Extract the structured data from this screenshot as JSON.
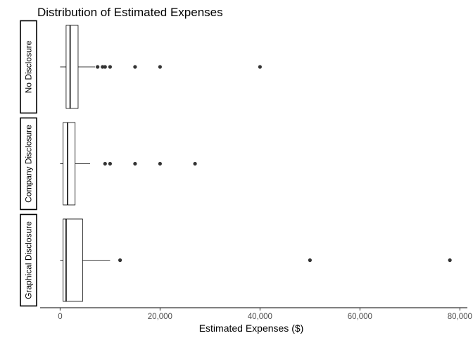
{
  "chart_data": {
    "type": "boxplot",
    "title": "Distribution of Estimated Expenses",
    "xlabel": "Estimated Expenses ($)",
    "xlim": [
      -4000,
      81500
    ],
    "x_ticks": [
      0,
      20000,
      40000,
      60000,
      80000
    ],
    "x_tick_labels": [
      "0",
      "20,000",
      "40,000",
      "60,000",
      "80,000"
    ],
    "grid": false,
    "legend": "none",
    "box_color": "#000000",
    "point_color": "#333333",
    "panels": [
      {
        "label": "No Disclosure",
        "min": 0,
        "q1": 1200,
        "median": 2000,
        "q3": 3600,
        "whisker_low": 0,
        "whisker_high": 7000,
        "outliers": [
          7500,
          8500,
          9000,
          10000,
          15000,
          20000,
          40000
        ]
      },
      {
        "label": "Company Disclosure",
        "min": 0,
        "q1": 600,
        "median": 1500,
        "q3": 3000,
        "whisker_low": 0,
        "whisker_high": 6000,
        "outliers": [
          9000,
          10000,
          15000,
          20000,
          27000
        ]
      },
      {
        "label": "Graphical Disclosure",
        "min": 0,
        "q1": 600,
        "median": 1200,
        "q3": 4500,
        "whisker_low": 0,
        "whisker_high": 10000,
        "outliers": [
          12000,
          50000,
          78000
        ]
      }
    ]
  }
}
